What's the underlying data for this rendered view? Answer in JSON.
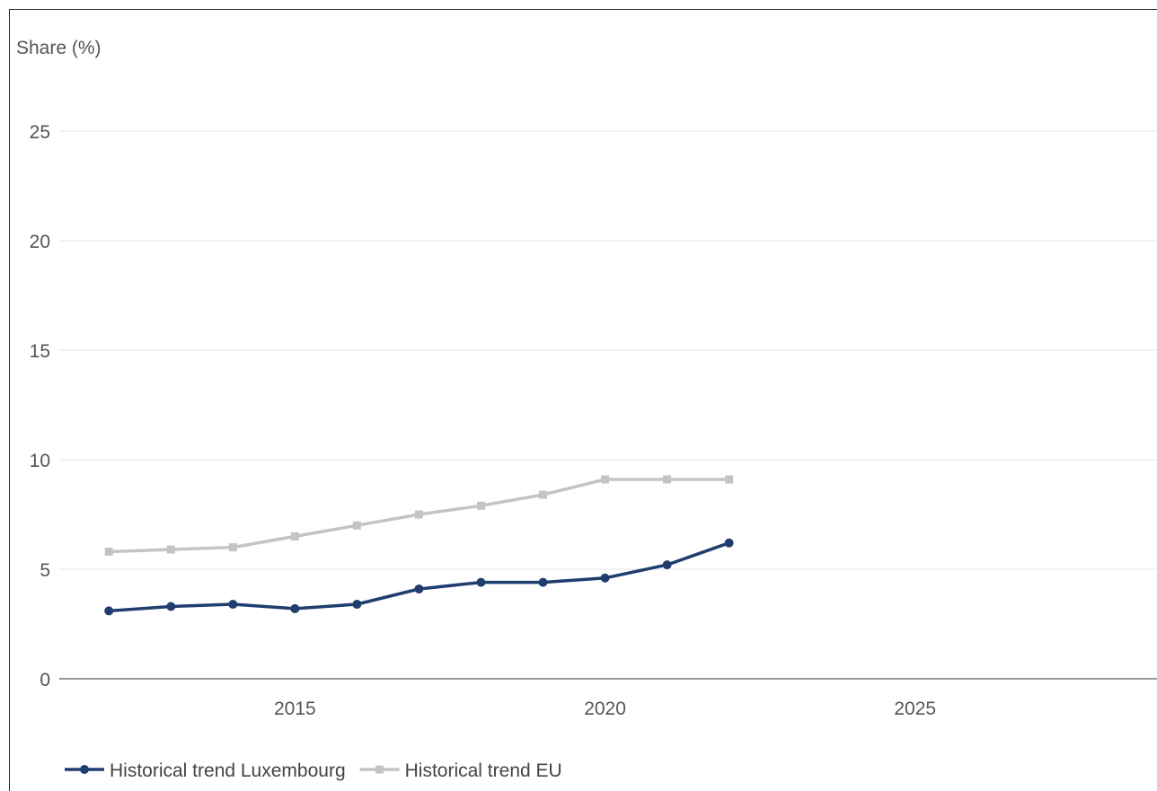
{
  "chart_data": {
    "type": "line",
    "ylabel": "Share (%)",
    "xlabel": "",
    "ylim": [
      0,
      25
    ],
    "xlim": [
      2011.2,
      2028.9
    ],
    "yticks": [
      "0",
      "5",
      "10",
      "15",
      "20",
      "25"
    ],
    "xticks": [
      "2015",
      "2020",
      "2025"
    ],
    "grid": true,
    "legend_position": "bottom-left",
    "x": [
      2012,
      2013,
      2014,
      2015,
      2016,
      2017,
      2018,
      2019,
      2020,
      2021,
      2022
    ],
    "series": [
      {
        "name": "Historical trend Luxembourg",
        "color": "#1f3d6e",
        "marker": "circle",
        "values": [
          3.1,
          3.3,
          3.4,
          3.2,
          3.4,
          4.1,
          4.4,
          4.4,
          4.6,
          5.2,
          6.2
        ]
      },
      {
        "name": "Historical trend EU",
        "color": "#c4c4c4",
        "marker": "square",
        "values": [
          5.8,
          5.9,
          6.0,
          6.5,
          7.0,
          7.5,
          7.9,
          8.4,
          9.1,
          9.1,
          9.1
        ]
      }
    ]
  }
}
